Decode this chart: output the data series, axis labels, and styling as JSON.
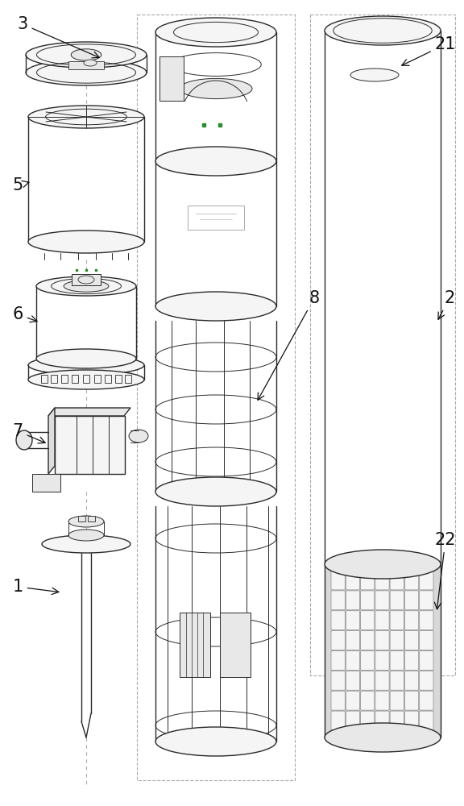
{
  "background_color": "#ffffff",
  "line_color": "#2a2a2a",
  "dashed_color": "#aaaaaa",
  "green_color": "#2d8c2d",
  "gray_fill": "#e8e8e8",
  "light_fill": "#f5f5f5",
  "mesh_fill": "#d0d0d0",
  "mesh_edge": "#888888"
}
